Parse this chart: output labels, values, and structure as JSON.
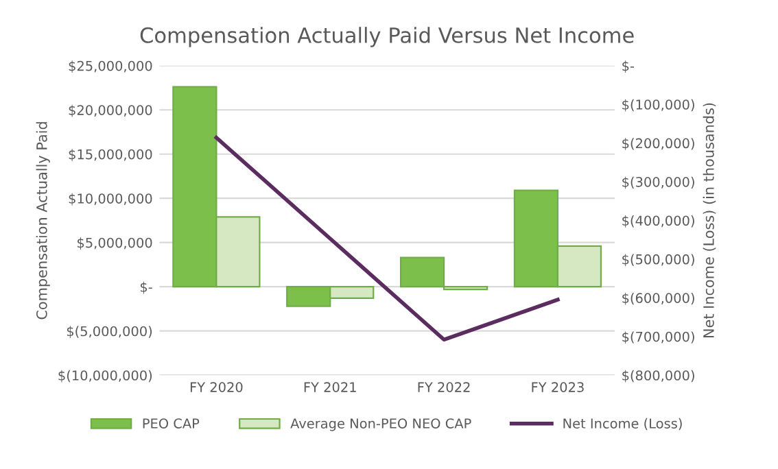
{
  "chart_data": {
    "type": "bar",
    "title": "Compensation Actually Paid Versus Net Income",
    "categories": [
      "FY 2020",
      "FY 2021",
      "FY 2022",
      "FY 2023"
    ],
    "ylabel": "Compensation Actually Paid",
    "y2label": "Net Income (Loss) (in thousands)",
    "series": [
      {
        "name": "PEO CAP",
        "color": "#7cc04b",
        "values": [
          22600000,
          -2200000,
          3300000,
          10900000
        ]
      },
      {
        "name": "Average Non-PEO NEO CAP",
        "color": "#d5e8c1",
        "values": [
          7900000,
          -1300000,
          -300000,
          4600000
        ]
      },
      {
        "name": "Net Income (Loss)",
        "type": "line",
        "axis": "y2",
        "color": "#5b2c5f",
        "values": [
          -186000,
          -447000,
          -708000,
          -605000
        ]
      }
    ],
    "ylim": [
      -10000000,
      25000000
    ],
    "yticks": [
      {
        "value": -10000000,
        "label": "$(10,000,000)"
      },
      {
        "value": -5000000,
        "label": "$(5,000,000)"
      },
      {
        "value": 0,
        "label": "$-"
      },
      {
        "value": 5000000,
        "label": "$5,000,000"
      },
      {
        "value": 10000000,
        "label": "$10,000,000"
      },
      {
        "value": 15000000,
        "label": "$15,000,000"
      },
      {
        "value": 20000000,
        "label": "$20,000,000"
      },
      {
        "value": 25000000,
        "label": "$25,000,000"
      }
    ],
    "y2lim": [
      -800000,
      0
    ],
    "y2ticks": [
      {
        "value": -800000,
        "label": "$(800,000)"
      },
      {
        "value": -700000,
        "label": "$(700,000)"
      },
      {
        "value": -600000,
        "label": "$(600,000)"
      },
      {
        "value": -500000,
        "label": "$(500,000)"
      },
      {
        "value": -400000,
        "label": "$(400,000)"
      },
      {
        "value": -300000,
        "label": "$(300,000)"
      },
      {
        "value": -200000,
        "label": "$(200,000)"
      },
      {
        "value": -100000,
        "label": "$(100,000)"
      },
      {
        "value": 0,
        "label": "$-"
      }
    ],
    "grid": "y",
    "legend": "bottom"
  }
}
